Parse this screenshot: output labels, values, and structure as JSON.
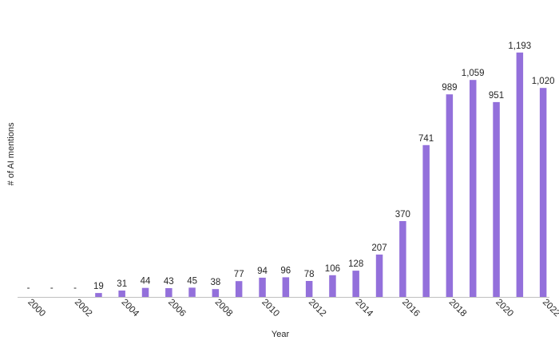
{
  "chart_data": {
    "type": "bar",
    "xlabel": "Year",
    "ylabel": "# of AI mentions",
    "categories": [
      "2000",
      "2001",
      "2002",
      "2003",
      "2004",
      "2005",
      "2006",
      "2007",
      "2008",
      "2009",
      "2010",
      "2011",
      "2012",
      "2013",
      "2014",
      "2015",
      "2016",
      "2017",
      "2018",
      "2019",
      "2020",
      "2021",
      "2022"
    ],
    "values": [
      0,
      0,
      0,
      19,
      31,
      44,
      43,
      45,
      38,
      77,
      94,
      96,
      78,
      106,
      128,
      207,
      370,
      741,
      989,
      1059,
      951,
      1193,
      1020
    ],
    "value_labels": [
      "-",
      "-",
      "-",
      "19",
      "31",
      "44",
      "43",
      "45",
      "38",
      "77",
      "94",
      "96",
      "78",
      "106",
      "128",
      "207",
      "370",
      "741",
      "989",
      "1,059",
      "951",
      "1,193",
      "1,020"
    ],
    "tick_labels": [
      "2000",
      "",
      "2002",
      "",
      "2004",
      "",
      "2006",
      "",
      "2008",
      "",
      "2010",
      "",
      "2012",
      "",
      "2014",
      "",
      "2016",
      "",
      "2018",
      "",
      "2020",
      "",
      "2022"
    ],
    "ylim": [
      0,
      1200
    ],
    "grid": false,
    "legend": "none",
    "bar_color": "#9370db",
    "axis_color": "#bfbfbf"
  }
}
